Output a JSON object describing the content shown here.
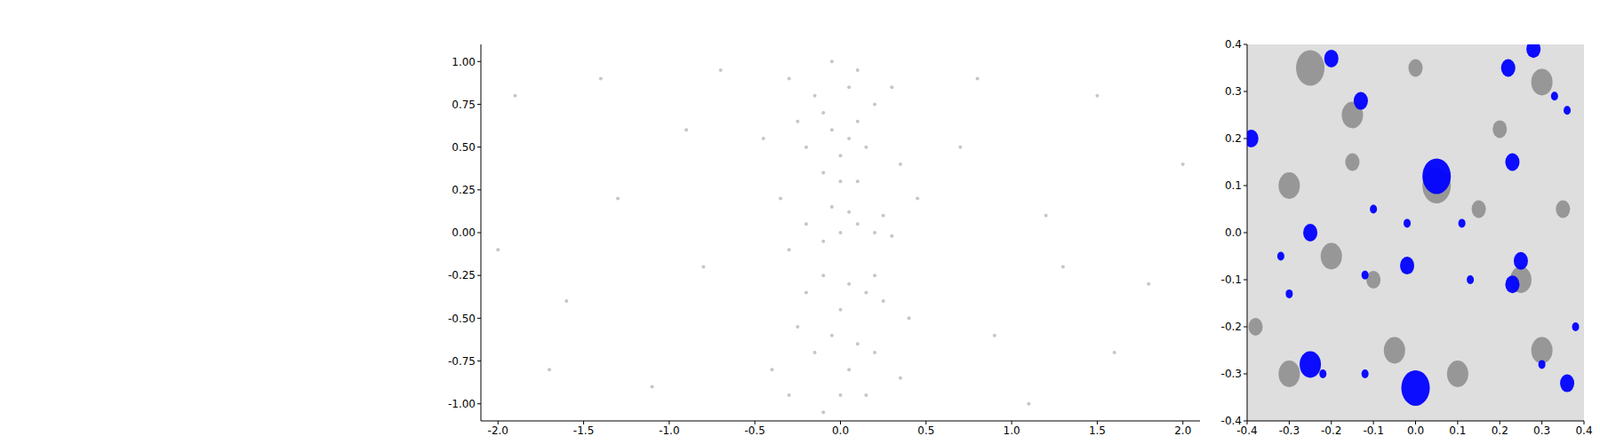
{
  "chart_data": [
    {
      "type": "scatter",
      "xlim": [
        -2.1,
        2.1
      ],
      "ylim": [
        -1.1,
        1.1
      ],
      "xticks": [
        {
          "value": -2,
          "label": "-2.0"
        },
        -1.5,
        {
          "value": -1,
          "label": "-1.0"
        },
        -0.5,
        {
          "value": 0,
          "label": "0.0"
        },
        0.5,
        {
          "value": 1,
          "label": "1.0"
        },
        1.5,
        {
          "value": 2,
          "label": "2.0"
        }
      ],
      "yticks": [
        {
          "value": -1,
          "label": "-1.00"
        },
        -0.75,
        {
          "value": -0.5,
          "label": "-0.50"
        },
        -0.25,
        {
          "value": 0,
          "label": "0.00"
        },
        0.25,
        {
          "value": 0.5,
          "label": "0.50"
        },
        0.75,
        {
          "value": 1,
          "label": "1.00"
        }
      ],
      "series": [
        {
          "color": "#808080",
          "marker": "dot",
          "x": [
            -1.9,
            -1.6,
            -1.3,
            -1.1,
            -0.9,
            -0.8,
            -0.7,
            -1.7,
            -1.4,
            -2.0,
            0.7,
            0.9,
            1.2,
            1.5,
            1.8,
            1.1,
            1.6,
            2.0,
            0.8,
            1.3,
            -0.05,
            0.05,
            -0.1,
            0.0,
            0.1,
            -0.2,
            0.15,
            -0.15,
            0.05,
            -0.25,
            0.2,
            0.0,
            -0.1,
            0.1,
            0.0,
            0.1,
            -0.1,
            0.2,
            -0.2,
            0.3,
            0.05,
            -0.05,
            0.25,
            -0.3,
            0.15,
            0.05,
            0.25,
            -0.1,
            0.2,
            0.0,
            -0.2,
            -0.05,
            0.1,
            -0.15,
            0.05,
            -0.25,
            0.2,
            0.0,
            -0.1,
            0.15,
            -0.05,
            0.1,
            -0.3,
            0.35,
            -0.35,
            0.4,
            -0.4,
            0.45,
            -0.45,
            0.3,
            -0.3,
            0.35
          ],
          "y": [
            0.8,
            -0.4,
            0.2,
            -0.9,
            0.6,
            -0.2,
            0.95,
            -0.8,
            0.9,
            -0.1,
            0.5,
            -0.6,
            0.1,
            0.8,
            -0.3,
            -1.0,
            -0.7,
            0.4,
            0.9,
            -0.2,
            0.6,
            0.55,
            0.7,
            0.45,
            0.65,
            0.5,
            0.5,
            0.8,
            0.85,
            0.65,
            0.75,
            0.3,
            0.35,
            0.3,
            0.0,
            0.05,
            -0.05,
            0.0,
            0.05,
            -0.02,
            0.12,
            0.15,
            0.1,
            -0.1,
            -0.35,
            -0.3,
            -0.4,
            -0.25,
            -0.25,
            -0.45,
            -0.35,
            -0.6,
            -0.65,
            -0.7,
            -0.8,
            -0.55,
            -0.7,
            -0.95,
            -1.05,
            -0.95,
            1.0,
            0.95,
            0.9,
            0.4,
            0.2,
            -0.5,
            -0.8,
            0.2,
            0.55,
            0.85,
            -0.95,
            -0.85
          ]
        }
      ]
    },
    {
      "type": "scatter",
      "xlim": [
        -0.4,
        0.4
      ],
      "ylim": [
        -0.4,
        0.4
      ],
      "xticks": [
        -0.4,
        -0.3,
        -0.2,
        -0.1,
        {
          "value": 0,
          "label": "0.0"
        },
        0.1,
        0.2,
        0.3,
        0.4
      ],
      "yticks": [
        -0.4,
        -0.3,
        -0.2,
        -0.1,
        {
          "value": 0,
          "label": "0.0"
        },
        0.1,
        0.2,
        0.3,
        0.4
      ],
      "series": [
        {
          "color": "#404040",
          "marker": "blob",
          "x": [
            -0.25,
            -0.15,
            0.05,
            0.3,
            -0.3,
            -0.2,
            0.15,
            0.25,
            -0.05,
            0.1,
            -0.3,
            0.3,
            0.0,
            -0.1,
            0.35,
            -0.38,
            0.2,
            -0.15
          ],
          "y": [
            0.35,
            0.25,
            0.1,
            0.32,
            0.1,
            -0.05,
            0.05,
            -0.1,
            -0.25,
            -0.3,
            -0.3,
            -0.25,
            0.35,
            -0.1,
            0.05,
            -0.2,
            0.22,
            0.15
          ],
          "size": [
            4,
            3,
            4,
            3,
            3,
            3,
            2,
            3,
            3,
            3,
            3,
            3,
            2,
            2,
            2,
            2,
            2,
            2
          ]
        },
        {
          "color": "#0000ff",
          "marker": "blob",
          "x": [
            0.0,
            0.05,
            -0.39,
            -0.25,
            -0.2,
            -0.13,
            0.22,
            0.28,
            0.36,
            0.23,
            0.25,
            0.23,
            0.13,
            -0.02,
            -0.12,
            -0.32,
            -0.3,
            -0.25,
            -0.12,
            -0.22,
            0.36,
            0.38,
            0.3,
            0.33,
            -0.1,
            0.11,
            -0.02
          ],
          "y": [
            -0.33,
            0.12,
            0.2,
            0.0,
            0.37,
            0.28,
            0.35,
            0.39,
            0.26,
            0.15,
            -0.06,
            -0.11,
            -0.1,
            -0.07,
            -0.09,
            -0.05,
            -0.13,
            -0.28,
            -0.3,
            -0.3,
            -0.32,
            -0.2,
            -0.28,
            0.29,
            0.05,
            0.02,
            0.02
          ],
          "size": [
            4,
            4,
            2,
            2,
            2,
            2,
            2,
            2,
            1,
            2,
            2,
            2,
            1,
            2,
            1,
            1,
            1,
            3,
            1,
            1,
            2,
            1,
            1,
            1,
            1,
            1,
            1
          ]
        }
      ]
    }
  ]
}
